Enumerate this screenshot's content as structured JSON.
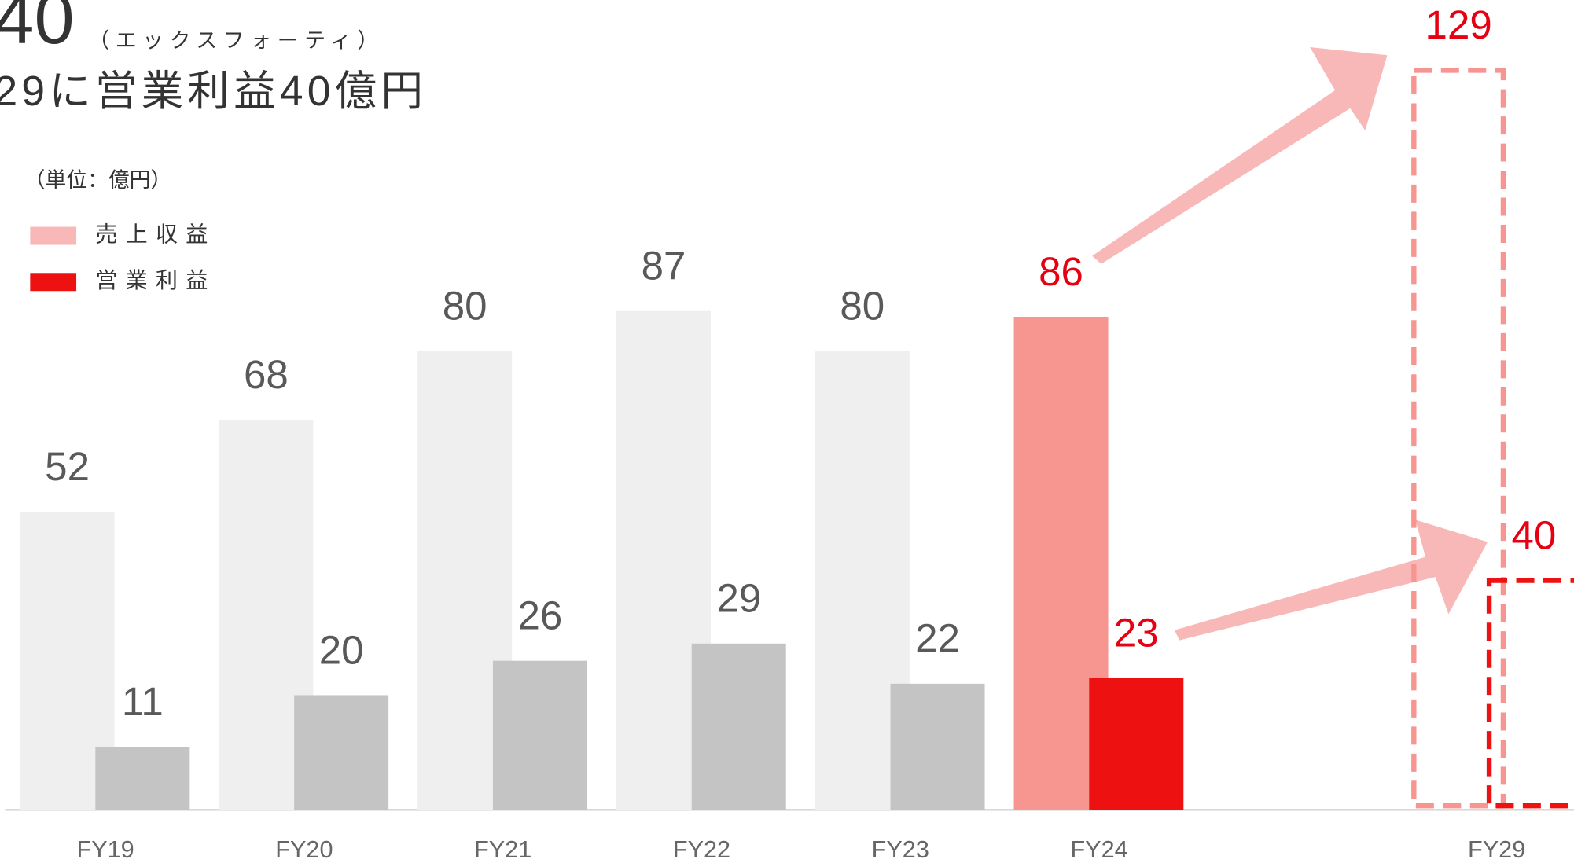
{
  "chart_data": {
    "type": "bar",
    "title": "40",
    "title_reading": "（エックスフォーティ）",
    "subtitle": "29に営業利益40億円",
    "unit_label": "（単位：億円）",
    "categories": [
      "FY19",
      "FY20",
      "FY21",
      "FY22",
      "FY23",
      "FY24",
      null,
      "FY29"
    ],
    "series": [
      {
        "name": "売上収益",
        "color": "#f9b8b8",
        "values": [
          52,
          68,
          80,
          87,
          80,
          86,
          null,
          129
        ],
        "colors": [
          "#efefef",
          "#efefef",
          "#efefef",
          "#efefef",
          "#efefef",
          "#f79591",
          null,
          "#f79591"
        ],
        "label_colors": [
          "#595959",
          "#595959",
          "#595959",
          "#595959",
          "#595959",
          "#e60012",
          null,
          "#e60012"
        ],
        "styles": [
          "solid",
          "solid",
          "solid",
          "solid",
          "solid",
          "solid",
          null,
          "dashed"
        ]
      },
      {
        "name": "営業利益",
        "color": "#ee1111",
        "values": [
          11,
          20,
          26,
          29,
          22,
          23,
          null,
          40
        ],
        "colors": [
          "#c4c4c4",
          "#c4c4c4",
          "#c4c4c4",
          "#c4c4c4",
          "#c4c4c4",
          "#ee1111",
          null,
          "#ee1111"
        ],
        "label_colors": [
          "#595959",
          "#595959",
          "#595959",
          "#595959",
          "#595959",
          "#e60012",
          null,
          "#e60012"
        ],
        "styles": [
          "solid",
          "solid",
          "solid",
          "solid",
          "solid",
          "solid",
          null,
          "dashed"
        ]
      }
    ]
  }
}
